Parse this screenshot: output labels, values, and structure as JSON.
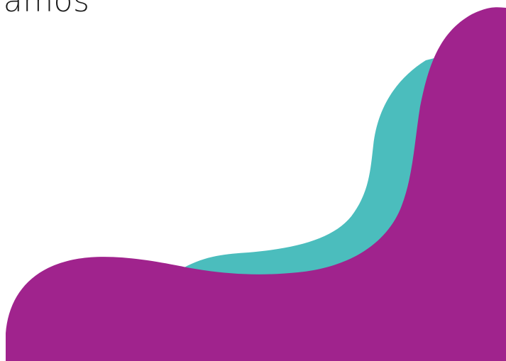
{
  "heading": {
    "text": "iamos"
  },
  "colors": {
    "background": "#ffffff",
    "text": "#1a1a1a",
    "teal_shape": "#4bbdbd",
    "magenta_shape": "#a0238d"
  }
}
